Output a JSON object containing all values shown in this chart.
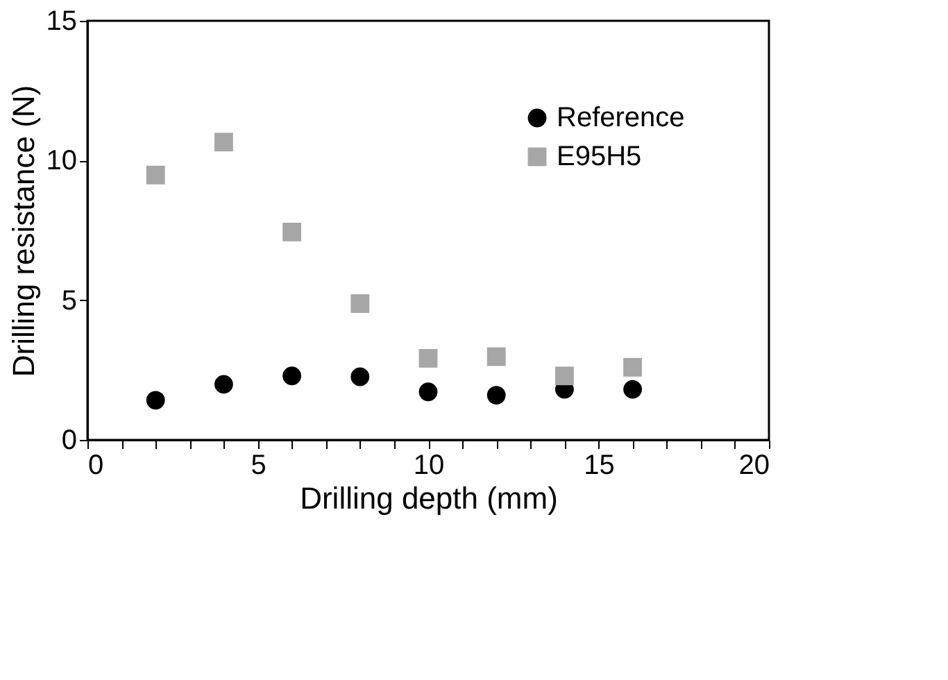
{
  "chart_data": {
    "type": "scatter",
    "xlabel": "Drilling depth (mm)",
    "ylabel": "Drilling resistance (N)",
    "x": [
      2,
      4,
      6,
      8,
      10,
      12,
      14,
      16
    ],
    "series": [
      {
        "name": "Reference",
        "color": "#000000",
        "marker": "circle",
        "values": [
          1.42,
          1.99,
          2.29,
          2.26,
          1.72,
          1.6,
          1.81,
          1.81
        ]
      },
      {
        "name": "E95H5",
        "color": "#a6a6a6",
        "marker": "square",
        "values": [
          9.48,
          10.66,
          7.44,
          4.88,
          2.92,
          2.98,
          2.29,
          2.6
        ]
      }
    ],
    "xlim": [
      0,
      20
    ],
    "xticks": [
      0,
      {
        "value": 1,
        "label": null
      },
      {
        "value": 2,
        "label": null
      },
      {
        "value": 3,
        "label": null
      },
      {
        "value": 4,
        "label": null
      },
      5,
      {
        "value": 6,
        "label": null
      },
      {
        "value": 7,
        "label": null
      },
      {
        "value": 8,
        "label": null
      },
      {
        "value": 9,
        "label": null
      },
      10,
      {
        "value": 11,
        "label": null
      },
      {
        "value": 12,
        "label": null
      },
      {
        "value": 13,
        "label": null
      },
      {
        "value": 14,
        "label": null
      },
      15,
      {
        "value": 16,
        "label": null
      },
      {
        "value": 17,
        "label": null
      },
      {
        "value": 18,
        "label": null
      },
      {
        "value": 19,
        "label": null
      },
      20
    ],
    "ylim": [
      0,
      15
    ],
    "yticks": [
      0,
      5,
      10,
      15
    ],
    "grid": false,
    "legend": "top right"
  }
}
